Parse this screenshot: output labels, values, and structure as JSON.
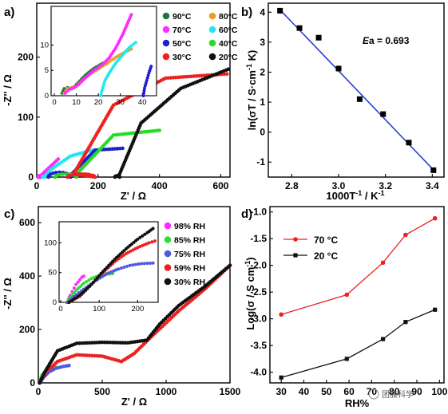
{
  "panels": {
    "a": {
      "label": "a)"
    },
    "b": {
      "label": "b)",
      "ann_ea": "E",
      "ann_val": "a = 0.693",
      "xl_a": "1000T",
      "xl_sup": "-1",
      "xl_b": " / K",
      "yl_a": "ln(σT / S·cm",
      "yl_sup1": "-1",
      "yl_b": " K)"
    },
    "c": {
      "label": "c)"
    },
    "d": {
      "label": "d)",
      "yl_a": "Log(σ / S cm",
      "yl_sup": "-1",
      "yl_b": ")"
    }
  },
  "watermark": "团簇科学",
  "colors": {
    "c90": "#1a7a3a",
    "c80": "#e8a020",
    "c70": "#ff2aff",
    "c60": "#22e6f0",
    "c50": "#1f1fd0",
    "c40": "#22dd22",
    "c30": "#ee2020",
    "c20": "#111111",
    "fit": "#2a3fd4",
    "rh98": "#ff2aff",
    "rh85": "#33dd33",
    "rh75": "#4d5ae0",
    "rh59": "#ee2020",
    "rh30": "#111111"
  },
  "chart_data": [
    {
      "panel": "a",
      "type": "scatter",
      "xlabel": "Z' / Ω",
      "ylabel": "-Z'' / Ω",
      "xlim": [
        0,
        630
      ],
      "ylim": [
        0,
        290
      ],
      "xticks": [
        0,
        200,
        400,
        600
      ],
      "yticks": [
        0,
        100,
        200
      ],
      "series": [
        {
          "name": "90°C",
          "color_key": "c90",
          "kind": "semi",
          "x0": 4,
          "x1": 10,
          "h": 1.6,
          "tail": [
            [
              10,
              1.6
            ],
            [
              25,
              6
            ]
          ]
        },
        {
          "name": "80°C",
          "color_key": "c80",
          "kind": "semi",
          "x0": 5,
          "x1": 12,
          "h": 1.8,
          "tail": [
            [
              12,
              2
            ],
            [
              35,
              9
            ]
          ]
        },
        {
          "name": "70°C",
          "color_key": "c70",
          "kind": "semi",
          "x0": 5,
          "x1": 14,
          "h": 2,
          "tail": [
            [
              14,
              3
            ],
            [
              70,
              30
            ]
          ]
        },
        {
          "name": "60°C",
          "color_key": "c60",
          "kind": "semi",
          "x0": 20,
          "x1": 25,
          "h": 1,
          "tail": [
            [
              25,
              0
            ],
            [
              45,
              12
            ],
            [
              110,
              35
            ],
            [
              180,
              45
            ]
          ]
        },
        {
          "name": "50°C",
          "color_key": "c50",
          "kind": "semi",
          "x0": 38,
          "x1": 110,
          "h": 8,
          "tail": [
            [
              110,
              3
            ],
            [
              190,
              45
            ],
            [
              280,
              48
            ]
          ]
        },
        {
          "name": "40°C",
          "color_key": "c40",
          "kind": "semi",
          "x0": 60,
          "x1": 130,
          "h": 5,
          "tail": [
            [
              130,
              5
            ],
            [
              250,
              70
            ],
            [
              400,
              78
            ]
          ]
        },
        {
          "name": "30°C",
          "color_key": "c30",
          "kind": "semi",
          "x0": 100,
          "x1": 190,
          "h": 5,
          "tail": [
            [
              120,
              5
            ],
            [
              250,
              120
            ],
            [
              420,
              165
            ],
            [
              620,
              172
            ]
          ]
        },
        {
          "name": "20°C",
          "color_key": "c20",
          "kind": "semi",
          "x0": 255,
          "x1": 270,
          "h": 2,
          "tail": [
            [
              270,
              5
            ],
            [
              340,
              90
            ],
            [
              470,
              148
            ],
            [
              625,
              180
            ]
          ]
        }
      ],
      "inset": {
        "xlim": [
          0,
          45
        ],
        "ylim": [
          0,
          17
        ],
        "xticks": [
          0,
          10,
          20,
          30,
          40
        ],
        "yticks": [
          0,
          5,
          10
        ],
        "series": [
          {
            "color_key": "c90",
            "points": [
              [
                3.5,
                0.5
              ],
              [
                4.5,
                1.4
              ],
              [
                6,
                1.6
              ],
              [
                8,
                1.4
              ],
              [
                10,
                2.2
              ],
              [
                14,
                4
              ],
              [
                18,
                5.4
              ],
              [
                22,
                6.4
              ]
            ]
          },
          {
            "color_key": "c80",
            "points": [
              [
                4.5,
                0.5
              ],
              [
                6,
                1.4
              ],
              [
                8,
                1.6
              ],
              [
                10,
                1.8
              ],
              [
                12,
                2.7
              ],
              [
                16,
                4.2
              ],
              [
                20,
                5.3
              ],
              [
                24,
                6.4
              ],
              [
                28,
                7.6
              ],
              [
                32,
                8.6
              ],
              [
                35,
                9.2
              ]
            ]
          },
          {
            "color_key": "c70",
            "points": [
              [
                5,
                0.5
              ],
              [
                7,
                1.3
              ],
              [
                9,
                1.6
              ],
              [
                11,
                2.2
              ],
              [
                14,
                3.5
              ],
              [
                18,
                5
              ],
              [
                22,
                6.2
              ],
              [
                25,
                7.5
              ],
              [
                28,
                9.5
              ],
              [
                31,
                12
              ],
              [
                33,
                14
              ],
              [
                35,
                16
              ]
            ]
          },
          {
            "color_key": "c60",
            "points": [
              [
                21,
                0
              ],
              [
                22,
                1.5
              ],
              [
                23,
                3
              ],
              [
                25,
                4.5
              ],
              [
                28,
                6.5
              ],
              [
                31,
                8
              ],
              [
                34,
                9.5
              ],
              [
                37,
                10.5
              ]
            ]
          },
          {
            "color_key": "c50",
            "points": [
              [
                40.5,
                0
              ],
              [
                41,
                1.5
              ],
              [
                42,
                3
              ],
              [
                43,
                4.5
              ],
              [
                44,
                5.8
              ]
            ]
          }
        ]
      }
    },
    {
      "panel": "b",
      "type": "scatter",
      "xlabel": "1000T-1 / K-1",
      "ylabel": "ln(σT / S·cm-1 K)",
      "xlim": [
        2.7,
        3.45
      ],
      "ylim": [
        -1.5,
        4.3
      ],
      "xticks": [
        2.8,
        3.0,
        3.2,
        3.4
      ],
      "yticks": [
        -1,
        0,
        1,
        2,
        3,
        4
      ],
      "points": [
        [
          2.75,
          4.05
        ],
        [
          2.833,
          3.47
        ],
        [
          2.915,
          3.15
        ],
        [
          3.0,
          2.12
        ],
        [
          3.09,
          1.1
        ],
        [
          3.19,
          0.6
        ],
        [
          3.3,
          -0.35
        ],
        [
          3.405,
          -1.27
        ]
      ],
      "fit": [
        [
          2.75,
          4.08
        ],
        [
          3.41,
          -1.3
        ]
      ]
    },
    {
      "panel": "c",
      "type": "scatter",
      "xlabel": "Z' / Ω",
      "ylabel": "-Z'' / Ω",
      "xlim": [
        0,
        1500
      ],
      "ylim": [
        0,
        660
      ],
      "xticks": [
        0,
        500,
        1000,
        1500
      ],
      "yticks": [
        0,
        200,
        400,
        600
      ],
      "series": [
        {
          "name": "98% RH",
          "color_key": "rh98",
          "tail": [
            [
              10,
              0
            ],
            [
              20,
              15
            ],
            [
              40,
              30
            ],
            [
              60,
              45
            ],
            [
              80,
              55
            ]
          ]
        },
        {
          "name": "85% RH",
          "color_key": "rh85",
          "tail": [
            [
              10,
              0
            ],
            [
              30,
              30
            ],
            [
              60,
              45
            ],
            [
              100,
              58
            ],
            [
              130,
              60
            ]
          ]
        },
        {
          "name": "75% RH",
          "color_key": "rh75",
          "tail": [
            [
              10,
              0
            ],
            [
              40,
              20
            ],
            [
              80,
              40
            ],
            [
              140,
              55
            ],
            [
              200,
              62
            ],
            [
              240,
              65
            ]
          ]
        },
        {
          "name": "59% RH",
          "color_key": "rh59",
          "tail": [
            [
              10,
              0
            ],
            [
              60,
              40
            ],
            [
              150,
              80
            ],
            [
              300,
              105
            ],
            [
              500,
              100
            ],
            [
              650,
              80
            ],
            [
              750,
              110
            ],
            [
              900,
              180
            ],
            [
              1100,
              270
            ],
            [
              1300,
              350
            ],
            [
              1500,
              440
            ]
          ]
        },
        {
          "name": "30% RH",
          "color_key": "rh30",
          "tail": [
            [
              10,
              0
            ],
            [
              50,
              40
            ],
            [
              150,
              120
            ],
            [
              300,
              148
            ],
            [
              500,
              152
            ],
            [
              700,
              150
            ],
            [
              850,
              160
            ],
            [
              950,
              220
            ],
            [
              1100,
              290
            ],
            [
              1300,
              360
            ],
            [
              1500,
              440
            ]
          ]
        }
      ],
      "inset": {
        "xlim": [
          0,
          245
        ],
        "ylim": [
          0,
          130
        ],
        "xticks": [
          0,
          100,
          200
        ],
        "yticks": [
          0,
          50,
          100
        ],
        "series": [
          {
            "color_key": "rh98",
            "points": [
              [
                15,
                0
              ],
              [
                20,
                5
              ],
              [
                25,
                12
              ],
              [
                30,
                18
              ],
              [
                35,
                24
              ],
              [
                40,
                30
              ],
              [
                45,
                34
              ],
              [
                50,
                38
              ],
              [
                55,
                42
              ],
              [
                60,
                44
              ]
            ]
          },
          {
            "color_key": "rh85",
            "points": [
              [
                15,
                0
              ],
              [
                25,
                8
              ],
              [
                40,
                20
              ],
              [
                60,
                32
              ],
              [
                80,
                40
              ],
              [
                100,
                45
              ],
              [
                120,
                47
              ],
              [
                135,
                48
              ]
            ]
          },
          {
            "color_key": "rh75",
            "points": [
              [
                18,
                0
              ],
              [
                35,
                10
              ],
              [
                60,
                22
              ],
              [
                90,
                36
              ],
              [
                120,
                48
              ],
              [
                150,
                56
              ],
              [
                180,
                62
              ],
              [
                210,
                65
              ],
              [
                240,
                66
              ]
            ]
          },
          {
            "color_key": "rh59",
            "points": [
              [
                20,
                0
              ],
              [
                50,
                10
              ],
              [
                80,
                30
              ],
              [
                110,
                50
              ],
              [
                140,
                68
              ],
              [
                170,
                82
              ],
              [
                200,
                92
              ],
              [
                230,
                100
              ],
              [
                245,
                103
              ]
            ]
          },
          {
            "color_key": "rh30",
            "points": [
              [
                22,
                0
              ],
              [
                50,
                12
              ],
              [
                80,
                30
              ],
              [
                110,
                52
              ],
              [
                140,
                72
              ],
              [
                170,
                90
              ],
              [
                200,
                106
              ],
              [
                225,
                117
              ],
              [
                240,
                124
              ]
            ]
          }
        ]
      }
    },
    {
      "panel": "d",
      "type": "line",
      "xlabel": "RH%",
      "ylabel": "Log(σ / S cm-1)",
      "xlim": [
        25,
        102
      ],
      "ylim": [
        -4.2,
        -0.9
      ],
      "xticks": [
        30,
        40,
        50,
        60,
        70,
        80,
        90,
        100
      ],
      "yticks": [
        -4.0,
        -3.5,
        -3.0,
        -2.5,
        -2.0,
        -1.5,
        -1.0
      ],
      "categories": [
        30,
        59,
        75,
        85,
        98
      ],
      "series": [
        {
          "name": "70 °C",
          "color_key": "c30",
          "values": [
            -2.92,
            -2.55,
            -1.95,
            -1.43,
            -1.12
          ]
        },
        {
          "name": "20 °C",
          "color_key": "c20",
          "values": [
            -4.1,
            -3.75,
            -3.38,
            -3.06,
            -2.83
          ]
        }
      ]
    }
  ]
}
